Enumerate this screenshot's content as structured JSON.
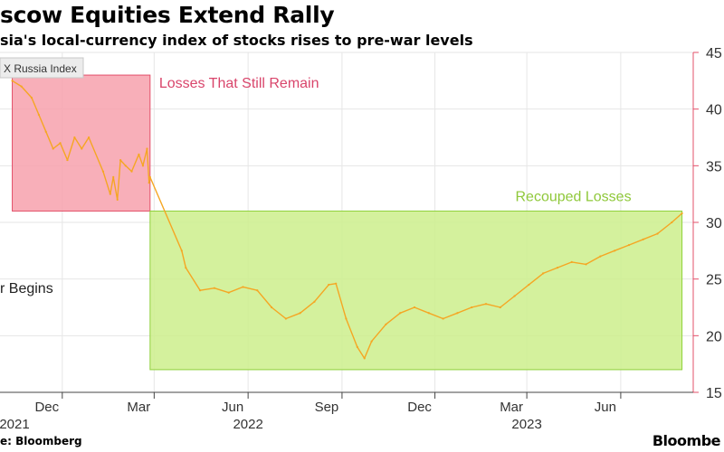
{
  "header": {
    "title": "scow Equities Extend Rally",
    "subtitle": "sia's local-currency index of stocks rises to pre-war levels"
  },
  "footer": {
    "source": "e: Bloomberg",
    "brand": "Bloombe"
  },
  "colors": {
    "series": "#f5a623",
    "loss_fill": "#f7a1ad",
    "loss_stroke": "#e3506a",
    "loss_text": "#d9456b",
    "gain_fill": "#cdee8c",
    "gain_stroke": "#8fd13a",
    "gain_text": "#8fc83a",
    "axis": "#e3506a",
    "grid": "#e6e6e6"
  },
  "chart_data": {
    "type": "line",
    "legend": "X Russia Index",
    "xlabel": "",
    "ylabel": "",
    "ylim": [
      15,
      45
    ],
    "yticks": [
      15,
      20,
      25,
      30,
      35,
      40,
      45
    ],
    "grid": true,
    "y_axis_position": "right",
    "xticks": [
      {
        "date": "2021-12-01",
        "label": "Dec",
        "year": "2021"
      },
      {
        "date": "2022-03-01",
        "label": "Mar",
        "year": ""
      },
      {
        "date": "2022-06-01",
        "label": "Jun",
        "year": "2022"
      },
      {
        "date": "2022-09-01",
        "label": "Sep",
        "year": ""
      },
      {
        "date": "2022-12-01",
        "label": "Dec",
        "year": ""
      },
      {
        "date": "2023-03-01",
        "label": "Mar",
        "year": "2023"
      },
      {
        "date": "2023-06-01",
        "label": "Jun",
        "year": ""
      }
    ],
    "annotations": [
      {
        "label": "Losses That Still Remain",
        "x_start": "2021-10-13",
        "x_end": "2022-02-25",
        "y_start": 31,
        "y_end": 43
      },
      {
        "label": "Recouped Losses",
        "x_start": "2022-02-25",
        "x_end": "2023-07-31",
        "y_start": 17,
        "y_end": 31
      },
      {
        "label": "r Begins"
      }
    ],
    "series": [
      {
        "x": [
          "2021-10-13",
          "2021-10-22",
          "2021-11-01",
          "2021-11-08",
          "2021-11-15",
          "2021-11-22",
          "2021-11-29",
          "2021-12-06",
          "2021-12-13",
          "2021-12-20",
          "2021-12-27",
          "2022-01-10",
          "2022-01-17",
          "2022-01-20",
          "2022-01-24",
          "2022-01-27",
          "2022-02-01",
          "2022-02-07",
          "2022-02-14",
          "2022-02-18",
          "2022-02-22",
          "2022-02-24",
          "2022-02-25",
          "2022-03-28",
          "2022-04-01",
          "2022-04-15",
          "2022-04-29",
          "2022-05-13",
          "2022-05-27",
          "2022-06-10",
          "2022-06-24",
          "2022-07-08",
          "2022-07-22",
          "2022-08-05",
          "2022-08-19",
          "2022-08-26",
          "2022-09-05",
          "2022-09-16",
          "2022-09-23",
          "2022-09-30",
          "2022-10-14",
          "2022-10-28",
          "2022-11-11",
          "2022-11-25",
          "2022-12-09",
          "2022-12-23",
          "2023-01-06",
          "2023-01-20",
          "2023-02-03",
          "2023-02-17",
          "2023-03-03",
          "2023-03-17",
          "2023-03-31",
          "2023-04-14",
          "2023-04-28",
          "2023-05-12",
          "2023-05-26",
          "2023-06-09",
          "2023-06-23",
          "2023-07-07",
          "2023-07-21",
          "2023-07-31"
        ],
        "values": [
          42.5,
          42.0,
          41.0,
          39.5,
          38.0,
          36.5,
          37.0,
          35.5,
          37.5,
          36.5,
          37.5,
          34.5,
          32.5,
          34.0,
          32.0,
          35.5,
          35.0,
          34.5,
          36.0,
          35.0,
          36.5,
          33.5,
          34.0,
          27.5,
          26.0,
          24.0,
          24.2,
          23.8,
          24.3,
          24.0,
          22.5,
          21.5,
          22.0,
          23.0,
          24.5,
          24.6,
          21.5,
          19.0,
          18.0,
          19.5,
          21.0,
          22.0,
          22.5,
          22.0,
          21.5,
          22.0,
          22.5,
          22.8,
          22.5,
          23.5,
          24.5,
          25.5,
          26.0,
          26.5,
          26.3,
          27.0,
          27.5,
          28.0,
          28.5,
          29.0,
          30.0,
          30.8
        ]
      }
    ]
  }
}
